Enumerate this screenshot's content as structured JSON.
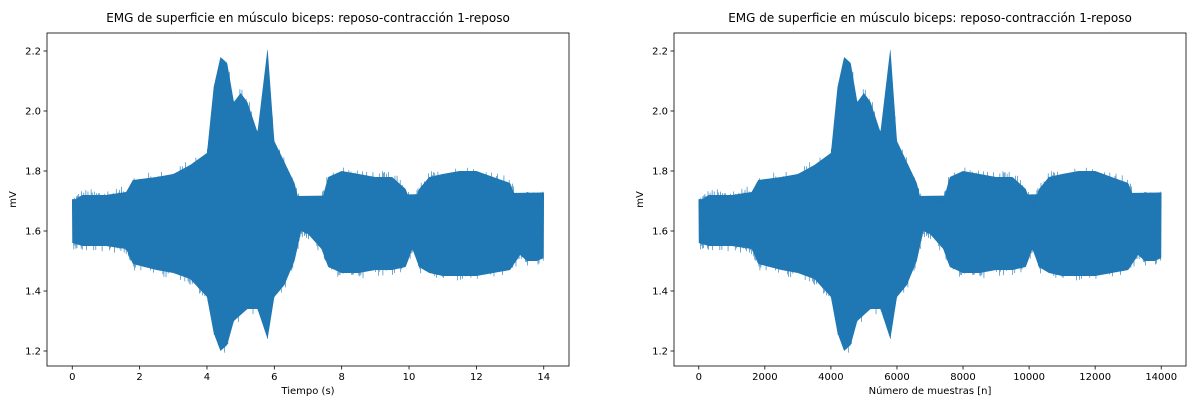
{
  "colors": {
    "signal": "#1f77b4"
  },
  "chart_data": [
    {
      "type": "line",
      "title": "EMG de superficie en músculo biceps: reposo-contracción 1-reposo",
      "xlabel": "Tiempo (s)",
      "ylabel": "mV",
      "xlim": [
        -0.75,
        14.75
      ],
      "ylim": [
        1.15,
        2.26
      ],
      "xticks": [
        0,
        2,
        4,
        6,
        8,
        10,
        12,
        14
      ],
      "xtick_labels": [
        "0",
        "2",
        "4",
        "6",
        "8",
        "10",
        "12",
        "14"
      ],
      "yticks": [
        1.2,
        1.4,
        1.6,
        1.8,
        2.0,
        2.2
      ],
      "ytick_labels": [
        "1.2",
        "1.4",
        "1.6",
        "1.8",
        "2.0",
        "2.2"
      ],
      "grid": false,
      "series": [
        {
          "x": [
            0.0,
            0.3,
            1.0,
            1.6,
            1.8,
            2.5,
            3.0,
            3.5,
            4.0,
            4.2,
            4.4,
            4.6,
            4.8,
            5.0,
            5.2,
            5.5,
            5.8,
            6.0,
            6.3,
            6.6,
            6.8,
            7.0,
            7.4,
            7.6,
            8.0,
            8.5,
            9.0,
            9.5,
            9.9,
            10.1,
            10.3,
            10.6,
            11.0,
            11.5,
            12.0,
            12.5,
            13.0,
            13.3,
            13.5,
            13.8,
            14.0
          ],
          "y_max": [
            1.72,
            1.74,
            1.74,
            1.75,
            1.79,
            1.8,
            1.81,
            1.84,
            1.88,
            2.1,
            2.2,
            2.18,
            2.05,
            2.08,
            2.05,
            1.95,
            2.23,
            1.92,
            1.85,
            1.78,
            1.69,
            1.7,
            1.72,
            1.8,
            1.82,
            1.81,
            1.8,
            1.8,
            1.76,
            1.7,
            1.76,
            1.8,
            1.81,
            1.82,
            1.82,
            1.8,
            1.78,
            1.7,
            1.75,
            1.74,
            1.73
          ],
          "y_min": [
            1.54,
            1.53,
            1.53,
            1.52,
            1.47,
            1.45,
            1.44,
            1.42,
            1.36,
            1.24,
            1.18,
            1.2,
            1.28,
            1.3,
            1.32,
            1.32,
            1.22,
            1.36,
            1.4,
            1.48,
            1.58,
            1.57,
            1.52,
            1.46,
            1.44,
            1.44,
            1.45,
            1.45,
            1.46,
            1.52,
            1.46,
            1.44,
            1.43,
            1.43,
            1.43,
            1.44,
            1.45,
            1.5,
            1.48,
            1.48,
            1.49
          ]
        }
      ]
    },
    {
      "type": "line",
      "title": "EMG de superficie en músculo biceps: reposo-contracción 1-reposo",
      "xlabel": "Número de muestras [n]",
      "ylabel": "mV",
      "xlim": [
        -750,
        14750
      ],
      "ylim": [
        1.15,
        2.26
      ],
      "xticks": [
        0,
        2000,
        4000,
        6000,
        8000,
        10000,
        12000,
        14000
      ],
      "xtick_labels": [
        "0",
        "2000",
        "4000",
        "6000",
        "8000",
        "10000",
        "12000",
        "14000"
      ],
      "yticks": [
        1.2,
        1.4,
        1.6,
        1.8,
        2.0,
        2.2
      ],
      "ytick_labels": [
        "1.2",
        "1.4",
        "1.6",
        "1.8",
        "2.0",
        "2.2"
      ],
      "grid": false,
      "series": [
        {
          "x": [
            0,
            300,
            1000,
            1600,
            1800,
            2500,
            3000,
            3500,
            4000,
            4200,
            4400,
            4600,
            4800,
            5000,
            5200,
            5500,
            5800,
            6000,
            6300,
            6600,
            6800,
            7000,
            7400,
            7600,
            8000,
            8500,
            9000,
            9500,
            9900,
            10100,
            10300,
            10600,
            11000,
            11500,
            12000,
            12500,
            13000,
            13300,
            13500,
            13800,
            14000
          ],
          "y_max": [
            1.72,
            1.74,
            1.74,
            1.75,
            1.79,
            1.8,
            1.81,
            1.84,
            1.88,
            2.1,
            2.2,
            2.18,
            2.05,
            2.08,
            2.05,
            1.95,
            2.23,
            1.92,
            1.85,
            1.78,
            1.69,
            1.7,
            1.72,
            1.8,
            1.82,
            1.81,
            1.8,
            1.8,
            1.76,
            1.7,
            1.76,
            1.8,
            1.81,
            1.82,
            1.82,
            1.8,
            1.78,
            1.7,
            1.75,
            1.74,
            1.73
          ],
          "y_min": [
            1.54,
            1.53,
            1.53,
            1.52,
            1.47,
            1.45,
            1.44,
            1.42,
            1.36,
            1.24,
            1.18,
            1.2,
            1.28,
            1.3,
            1.32,
            1.32,
            1.22,
            1.36,
            1.4,
            1.48,
            1.58,
            1.57,
            1.52,
            1.46,
            1.44,
            1.44,
            1.45,
            1.45,
            1.46,
            1.52,
            1.46,
            1.44,
            1.43,
            1.43,
            1.43,
            1.44,
            1.45,
            1.5,
            1.48,
            1.48,
            1.49
          ]
        }
      ]
    }
  ]
}
